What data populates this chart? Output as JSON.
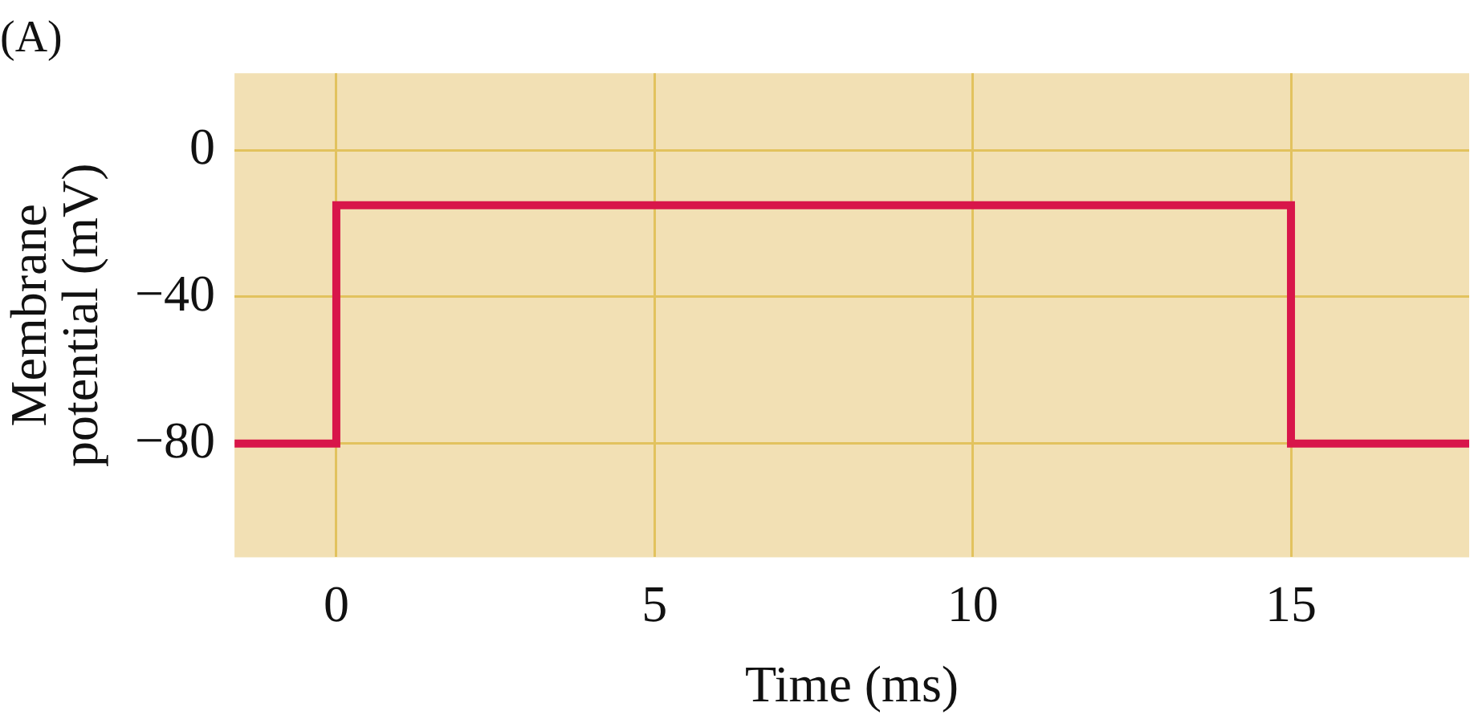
{
  "chart_data": {
    "type": "step",
    "title": "(A)",
    "xlabel": "Time (ms)",
    "ylabel": "Membrane potential (mV)",
    "x": [
      -1.6,
      0,
      15,
      17.8
    ],
    "series": [
      {
        "color": "#d8164a",
        "values": [
          -80,
          -15,
          -80,
          -80
        ]
      }
    ],
    "xlim": [
      -1.6,
      17.8
    ],
    "xticks": [
      0,
      5,
      10,
      15
    ],
    "ylim": [
      -111,
      21
    ],
    "yticks": [
      0,
      -40,
      -80
    ],
    "grid": true,
    "legend": false
  }
}
